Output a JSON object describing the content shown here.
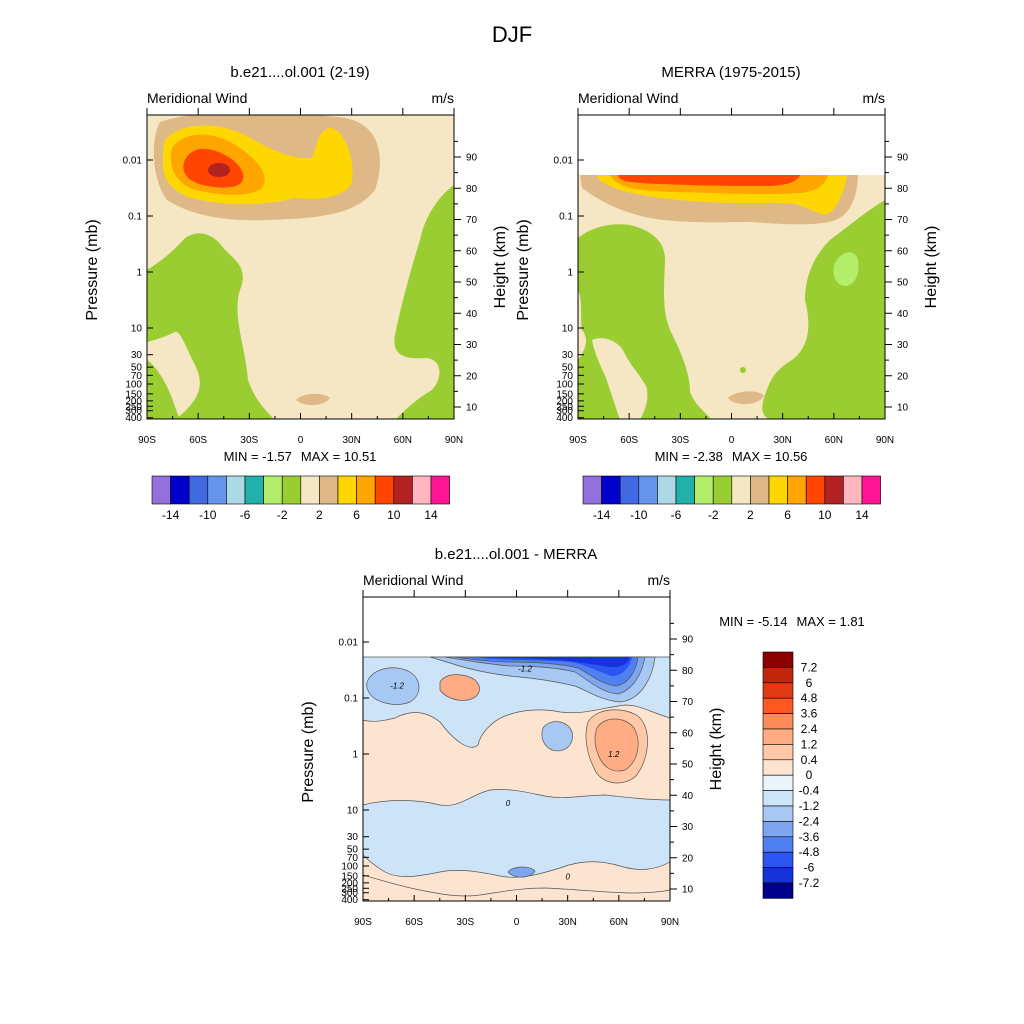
{
  "figure": {
    "title": "DJF"
  },
  "chart_data": [
    {
      "type": "heatmap",
      "title": "b.e21....ol.001 (2-19)",
      "field_label": "Meridional Wind",
      "units": "m/s",
      "ylabel": "Pressure (mb)",
      "ylabel_right": "Height (km)",
      "x_ticks": [
        "90S",
        "60S",
        "30S",
        "0",
        "30N",
        "60N",
        "90N"
      ],
      "pressure_ticks": [
        "0.01",
        "0.1",
        "1",
        "10",
        "30",
        "50",
        "70",
        "100",
        "150",
        "200",
        "250",
        "300",
        "400"
      ],
      "height_ticks": [
        "10",
        "20",
        "30",
        "40",
        "50",
        "60",
        "70",
        "80",
        "90"
      ],
      "min_label": "MIN = ",
      "max_label": "MAX = ",
      "min": -1.57,
      "max": 10.51,
      "data_top_mb": 0.0015,
      "features": [
        {
          "name": "max-core",
          "lat": -55,
          "p": 0.007,
          "value": 10.5
        },
        {
          "name": "jet-band",
          "lat": -45,
          "p": 0.012,
          "value": 6
        },
        {
          "name": "nh-lobe",
          "lat": 20,
          "p": 0.01,
          "value": 4
        }
      ],
      "colorbar": {
        "labels": [
          "-14",
          "-10",
          "-6",
          "-2",
          "2",
          "6",
          "10",
          "14"
        ],
        "colors": [
          "#9370db",
          "#0000cd",
          "#4169e1",
          "#6495ed",
          "#add8e6",
          "#20b2aa",
          "#b3ee6a",
          "#9acd32",
          "#f5e6c4",
          "#deb887",
          "#ffd700",
          "#ffa500",
          "#ff4500",
          "#b22222",
          "#ffb6c1",
          "#ff1493"
        ]
      }
    },
    {
      "type": "heatmap",
      "title": "MERRA (1975-2015)",
      "field_label": "Meridional Wind",
      "units": "m/s",
      "ylabel": "Pressure (mb)",
      "ylabel_right": "Height (km)",
      "x_ticks": [
        "90S",
        "60S",
        "30S",
        "0",
        "30N",
        "60N",
        "90N"
      ],
      "pressure_ticks": [
        "0.01",
        "0.1",
        "1",
        "10",
        "30",
        "50",
        "70",
        "100",
        "150",
        "200",
        "250",
        "300",
        "400"
      ],
      "height_ticks": [
        "10",
        "20",
        "30",
        "40",
        "50",
        "60",
        "70",
        "80",
        "90"
      ],
      "min_label": "MIN = ",
      "max_label": "MAX = ",
      "min": -2.38,
      "max": 10.56,
      "data_top_mb": 0.015,
      "features": [
        {
          "name": "max-band",
          "lat": -5,
          "p": 0.016,
          "value": 10.5
        },
        {
          "name": "jet-band",
          "lat": 10,
          "p": 0.03,
          "value": 6
        },
        {
          "name": "green-blob",
          "lat": 65,
          "p": 0.95,
          "value": -1.5
        }
      ],
      "colorbar": {
        "labels": [
          "-14",
          "-10",
          "-6",
          "-2",
          "2",
          "6",
          "10",
          "14"
        ],
        "colors": [
          "#9370db",
          "#0000cd",
          "#4169e1",
          "#6495ed",
          "#add8e6",
          "#20b2aa",
          "#b3ee6a",
          "#9acd32",
          "#f5e6c4",
          "#deb887",
          "#ffd700",
          "#ffa500",
          "#ff4500",
          "#b22222",
          "#ffb6c1",
          "#ff1493"
        ]
      }
    },
    {
      "type": "heatmap",
      "title": "b.e21....ol.001 - MERRA",
      "field_label": "Meridional Wind",
      "units": "m/s",
      "ylabel": "Pressure (mb)",
      "ylabel_right": "Height (km)",
      "x_ticks": [
        "90S",
        "60S",
        "30S",
        "0",
        "30N",
        "60N",
        "90N"
      ],
      "pressure_ticks": [
        "0.01",
        "0.1",
        "1",
        "10",
        "30",
        "50",
        "70",
        "100",
        "150",
        "200",
        "250",
        "300",
        "400"
      ],
      "height_ticks": [
        "10",
        "20",
        "30",
        "40",
        "50",
        "60",
        "70",
        "80",
        "90"
      ],
      "min_label": "MIN = ",
      "max_label": "MAX = ",
      "min": -5.14,
      "max": 1.81,
      "data_top_mb": 0.015,
      "contour_labels": [
        {
          "text": "-1.2",
          "lat": -70,
          "p": 0.06
        },
        {
          "text": "-1.2",
          "lat": 5,
          "p": 0.03
        },
        {
          "text": "1.2",
          "lat": 57,
          "p": 1.0
        },
        {
          "text": "0",
          "lat": -5,
          "p": 7.5
        },
        {
          "text": "0",
          "lat": 30,
          "p": 155
        }
      ],
      "colorbar": {
        "labels": [
          "7.2",
          "6",
          "4.8",
          "3.6",
          "2.4",
          "1.2",
          "0.4",
          "0",
          "-0.4",
          "-1.2",
          "-2.4",
          "-3.6",
          "-4.8",
          "-6",
          "-7.2"
        ],
        "colors": [
          "#8b0000",
          "#c1250b",
          "#e03b12",
          "#ff5722",
          "#ff8a5b",
          "#ffab84",
          "#ffc9a8",
          "#fde4d0",
          "#ecf4fb",
          "#cde3f7",
          "#a6c8f3",
          "#7ea6f0",
          "#4f7ff0",
          "#2b54f0",
          "#1533d6",
          "#00008b"
        ]
      }
    }
  ]
}
